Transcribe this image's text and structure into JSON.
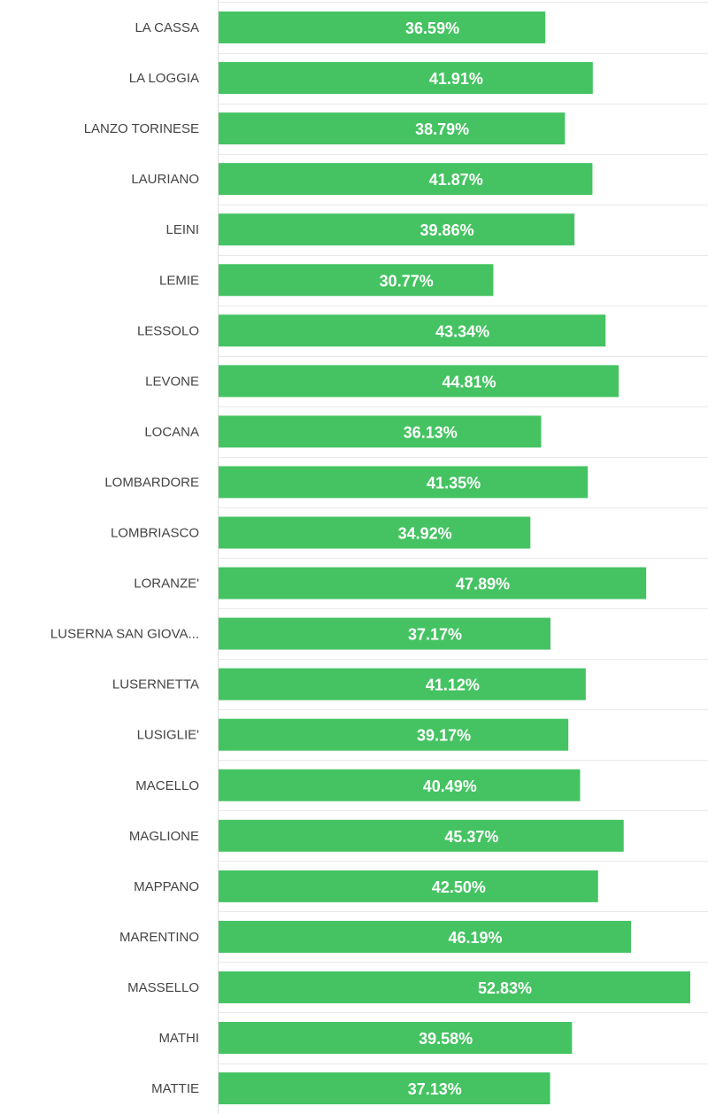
{
  "chart_data": {
    "type": "bar",
    "orientation": "horizontal",
    "categories": [
      "LA CASSA",
      "LA LOGGIA",
      "LANZO TORINESE",
      "LAURIANO",
      "LEINI",
      "LEMIE",
      "LESSOLO",
      "LEVONE",
      "LOCANA",
      "LOMBARDORE",
      "LOMBRIASCO",
      "LORANZE'",
      "LUSERNA SAN GIOVA...",
      "LUSERNETTA",
      "LUSIGLIE'",
      "MACELLO",
      "MAGLIONE",
      "MAPPANO",
      "MARENTINO",
      "MASSELLO",
      "MATHI",
      "MATTIE"
    ],
    "values": [
      36.59,
      41.91,
      38.79,
      41.87,
      39.86,
      30.77,
      43.34,
      44.81,
      36.13,
      41.35,
      34.92,
      47.89,
      37.17,
      41.12,
      39.17,
      40.49,
      45.37,
      42.5,
      46.19,
      52.83,
      39.58,
      37.13
    ],
    "value_labels": [
      "36.59%",
      "41.91%",
      "38.79%",
      "41.87%",
      "39.86%",
      "30.77%",
      "43.34%",
      "44.81%",
      "36.13%",
      "41.35%",
      "34.92%",
      "47.89%",
      "37.17%",
      "41.12%",
      "39.17%",
      "40.49%",
      "45.37%",
      "42.50%",
      "46.19%",
      "52.83%",
      "39.58%",
      "37.13%"
    ],
    "title": "",
    "xlabel": "",
    "ylabel": "",
    "xlim": [
      0,
      52.83
    ],
    "grid": true,
    "colors": {
      "bar": "#45c362",
      "value_text": "#ffffff",
      "category_text": "#444444",
      "grid": "#e9e9e9",
      "axis": "#dddddd"
    }
  }
}
